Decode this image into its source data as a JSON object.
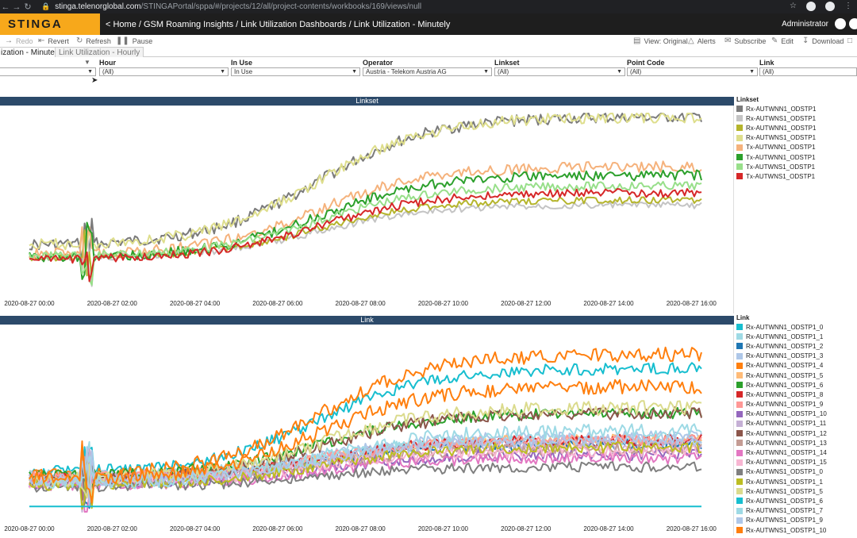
{
  "browser": {
    "url_host": "stinga.telenorglobal.com",
    "url_path": "/STINGAPortal/sppa/#/projects/12/all/project-contents/workbooks/169/views/null"
  },
  "app": {
    "logo": "STINGA",
    "breadcrumb": "< Home / GSM Roaming Insights / Link Utilization Dashboards / Link Utilization - Minutely",
    "user": "Administrator"
  },
  "toolbar": {
    "redo": "Redo",
    "revert": "Revert",
    "refresh": "Refresh",
    "pause": "Pause",
    "view": "View: Original",
    "alerts": "Alerts",
    "subscribe": "Subscribe",
    "edit": "Edit",
    "download": "Download"
  },
  "tabs": [
    {
      "label": "ization - Minutely",
      "active": true
    },
    {
      "label": "Link Utilization - Hourly",
      "active": false
    }
  ],
  "filters": [
    {
      "label": "",
      "value": ""
    },
    {
      "label": "Hour",
      "value": "(All)"
    },
    {
      "label": "In Use",
      "value": "In Use"
    },
    {
      "label": "Operator",
      "value": "Austria - Telekom Austria AG"
    },
    {
      "label": "Linkset",
      "value": "(All)"
    },
    {
      "label": "Point Code",
      "value": "(All)"
    },
    {
      "label": "Link",
      "value": "(All)"
    }
  ],
  "chart_data": [
    {
      "type": "line",
      "title": "Linkset",
      "x_ticks": [
        "2020-08-27 00:00",
        "2020-08-27 02:00",
        "2020-08-27 04:00",
        "2020-08-27 06:00",
        "2020-08-27 08:00",
        "2020-08-27 10:00",
        "2020-08-27 12:00",
        "2020-08-27 14:00",
        "2020-08-27 16:00"
      ],
      "legend_title": "Linkset",
      "legend_placement": "right",
      "grid": false,
      "series": [
        {
          "name": "Rx-AUTWNN1_ODSTP1",
          "color": "#7a7a7a",
          "start": 0.75,
          "end": 0.02,
          "noise": 0.02
        },
        {
          "name": "Rx-AUTWNS1_ODSTP1",
          "color": "#c4c4c4",
          "start": 0.82,
          "end": 0.52,
          "noise": 0.012
        },
        {
          "name": "Rx-AUTWNN1_ODSTP1",
          "color": "#b5b52c",
          "start": 0.82,
          "end": 0.49,
          "noise": 0.012
        },
        {
          "name": "Rx-AUTWNS1_ODSTP1",
          "color": "#dede8c",
          "start": 0.75,
          "end": 0.02,
          "noise": 0.02
        },
        {
          "name": "Tx-AUTWNN1_ODSTP1",
          "color": "#f5b27c",
          "start": 0.8,
          "end": 0.3,
          "noise": 0.02
        },
        {
          "name": "Tx-AUTWNN1_ODSTP1",
          "color": "#2ca02c",
          "start": 0.82,
          "end": 0.35,
          "noise": 0.018
        },
        {
          "name": "Tx-AUTWNS1_ODSTP1",
          "color": "#98df8a",
          "start": 0.81,
          "end": 0.41,
          "noise": 0.015
        },
        {
          "name": "Tx-AUTWNS1_ODSTP1",
          "color": "#d62728",
          "start": 0.83,
          "end": 0.45,
          "noise": 0.015
        }
      ]
    },
    {
      "type": "line",
      "title": "Link",
      "x_ticks": [
        "2020-08-27 00:00",
        "2020-08-27 02:00",
        "2020-08-27 04:00",
        "2020-08-27 06:00",
        "2020-08-27 08:00",
        "2020-08-27 10:00",
        "2020-08-27 12:00",
        "2020-08-27 14:00",
        "2020-08-27 16:00"
      ],
      "legend_title": "Link",
      "legend_placement": "right",
      "grid": false,
      "series": [
        {
          "name": "Rx-AUTWNN1_ODSTP1_0",
          "color": "#17becf",
          "start": 0.78,
          "end": 0.2,
          "noise": 0.02
        },
        {
          "name": "Rx-AUTWNN1_ODSTP1_1",
          "color": "#9edae5",
          "start": 0.8,
          "end": 0.6,
          "noise": 0.02
        },
        {
          "name": "Rx-AUTWNN1_ODSTP1_2",
          "color": "#1f77b4",
          "start": 0.82,
          "end": 0.62,
          "noise": 0.02
        },
        {
          "name": "Rx-AUTWNN1_ODSTP1_3",
          "color": "#aec7e8",
          "start": 0.8,
          "end": 0.58,
          "noise": 0.02
        },
        {
          "name": "Rx-AUTWNN1_ODSTP1_4",
          "color": "#ff7f0e",
          "start": 0.8,
          "end": 0.12,
          "noise": 0.025
        },
        {
          "name": "Rx-AUTWNN1_ODSTP1_5",
          "color": "#ffbb78",
          "start": 0.82,
          "end": 0.6,
          "noise": 0.02
        },
        {
          "name": "Rx-AUTWNN1_ODSTP1_6",
          "color": "#2ca02c",
          "start": 0.8,
          "end": 0.45,
          "noise": 0.02
        },
        {
          "name": "Rx-AUTWNN1_ODSTP1_8",
          "color": "#d62728",
          "start": 0.82,
          "end": 0.6,
          "noise": 0.02
        },
        {
          "name": "Rx-AUTWNN1_ODSTP1_9",
          "color": "#ff9896",
          "start": 0.81,
          "end": 0.6,
          "noise": 0.02
        },
        {
          "name": "Rx-AUTWNN1_ODSTP1_10",
          "color": "#9467bd",
          "start": 0.84,
          "end": 0.68,
          "noise": 0.02
        },
        {
          "name": "Rx-AUTWNN1_ODSTP1_11",
          "color": "#c5b0d5",
          "start": 0.82,
          "end": 0.62,
          "noise": 0.02
        },
        {
          "name": "Rx-AUTWNN1_ODSTP1_12",
          "color": "#8c564b",
          "start": 0.83,
          "end": 0.45,
          "noise": 0.022
        },
        {
          "name": "Rx-AUTWNN1_ODSTP1_13",
          "color": "#c49c94",
          "start": 0.84,
          "end": 0.65,
          "noise": 0.02
        },
        {
          "name": "Rx-AUTWNN1_ODSTP1_14",
          "color": "#e377c2",
          "start": 0.85,
          "end": 0.7,
          "noise": 0.02
        },
        {
          "name": "Rx-AUTWNN1_ODSTP1_15",
          "color": "#f7b6d2",
          "start": 0.84,
          "end": 0.66,
          "noise": 0.02
        },
        {
          "name": "Rx-AUTWNS1_ODSTP1_0",
          "color": "#7f7f7f",
          "start": 0.86,
          "end": 0.75,
          "noise": 0.018
        },
        {
          "name": "Rx-AUTWNS1_ODSTP1_1",
          "color": "#bcbd22",
          "start": 0.85,
          "end": 0.64,
          "noise": 0.02
        },
        {
          "name": "Rx-AUTWNS1_ODSTP1_5",
          "color": "#dbdb8d",
          "start": 0.82,
          "end": 0.42,
          "noise": 0.025
        },
        {
          "name": "Rx-AUTWNS1_ODSTP1_6",
          "color": "#17becf",
          "start": 0.97,
          "end": 0.97,
          "noise": 0.0
        },
        {
          "name": "Rx-AUTWNS1_ODSTP1_7",
          "color": "#9edae5",
          "start": 0.84,
          "end": 0.55,
          "noise": 0.025
        },
        {
          "name": "Rx-AUTWNS1_ODSTP1_9",
          "color": "#aec7e8",
          "start": 0.83,
          "end": 0.6,
          "noise": 0.02
        },
        {
          "name": "Rx-AUTWNS1_ODSTP1_10",
          "color": "#ff7f0e",
          "start": 0.82,
          "end": 0.3,
          "noise": 0.025
        }
      ]
    }
  ]
}
